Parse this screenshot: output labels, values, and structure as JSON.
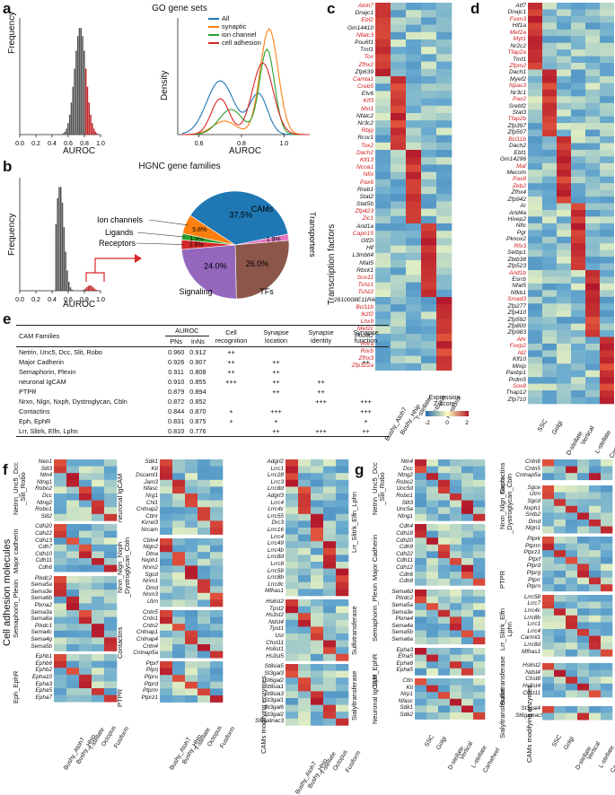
{
  "panel_labels": {
    "a": "a",
    "b": "b",
    "c": "c",
    "d": "d",
    "e": "e",
    "f": "f",
    "g": "g"
  },
  "colors": {
    "red": "#d01c1c",
    "blue_low": "#2166ac",
    "red_high": "#b2182b",
    "hist_grey": "#555555",
    "hist_red": "#c0282a"
  },
  "panel_a": {
    "title": "GO gene sets",
    "hist": {
      "xlabel": "AUROC",
      "ylabel": "Frequency",
      "xticks": [
        "0.0",
        "0.2",
        "0.4",
        "0.6",
        "0.8",
        "1.0"
      ]
    },
    "density": {
      "xlabel": "AUROC",
      "ylabel": "Density",
      "xticks": [
        "0.6",
        "0.8",
        "1.0"
      ],
      "legend": [
        {
          "label": "All",
          "color": "#1f77b4"
        },
        {
          "label": "synaptic",
          "color": "#ff7f0e"
        },
        {
          "label": "ion channel",
          "color": "#2ca02c"
        },
        {
          "label": "cell adhesion",
          "color": "#d62728"
        }
      ]
    }
  },
  "panel_b": {
    "title": "HGNC gene families",
    "hist": {
      "xlabel": "AUROC",
      "ylabel": "Frequency",
      "xticks": [
        "0.0",
        "0.2",
        "0.4",
        "0.6",
        "0.8",
        "1.0"
      ]
    },
    "pie": {
      "slices": [
        {
          "label": "CAMs",
          "value": 37.5,
          "pct": "37.5%",
          "color": "#1f77b4"
        },
        {
          "label": "Transporters",
          "value": 1.9,
          "pct": "1.9%",
          "color": "#e377c2"
        },
        {
          "label": "TFs",
          "value": 26.0,
          "pct": "26.0%",
          "color": "#8c564b"
        },
        {
          "label": "Signaling",
          "value": 24.0,
          "pct": "24.0%",
          "color": "#9467bd"
        },
        {
          "label": "Receptors",
          "value": 2.9,
          "pct": "2.9%",
          "color": "#d62728"
        },
        {
          "label": "Ligands",
          "value": 1.9,
          "pct": "1.9%",
          "color": "#2ca02c"
        },
        {
          "label": "Ion channels",
          "value": 5.8,
          "pct": "5.8%",
          "color": "#ff7f0e"
        }
      ]
    }
  },
  "panel_c": {
    "axis_title": "Transcription factors",
    "columns": [
      "Bushy_Atoh7",
      "Bushy_Hhip",
      "T-stellate",
      "Octopus",
      "Fusiform"
    ],
    "genes": [
      [
        "Atoh7",
        1
      ],
      [
        "Dnajc1",
        0
      ],
      [
        "Ebf2",
        1
      ],
      [
        "Gm14410",
        0
      ],
      [
        "Nfatc3",
        1
      ],
      [
        "Pou6f1",
        0
      ],
      [
        "Tmf1",
        0
      ],
      [
        "Tox",
        1
      ],
      [
        "Zfhx2",
        1
      ],
      [
        "Zfp639",
        0
      ],
      [
        "Camta1",
        1
      ],
      [
        "Creb5",
        1
      ],
      [
        "Etv6",
        0
      ],
      [
        "Klf3",
        1
      ],
      [
        "Mxi1",
        1
      ],
      [
        "Nfatc2",
        0
      ],
      [
        "Nr3c2",
        0
      ],
      [
        "Rbpj",
        1
      ],
      [
        "Rcor1",
        0
      ],
      [
        "Tox2",
        1
      ],
      [
        "Dach2",
        1
      ],
      [
        "Klf13",
        1
      ],
      [
        "Ncoa1",
        1
      ],
      [
        "Nfix",
        1
      ],
      [
        "Pax6",
        1
      ],
      [
        "Rreb1",
        0
      ],
      [
        "Stat2",
        0
      ],
      [
        "Stat5b",
        0
      ],
      [
        "Zfp423",
        1
      ],
      [
        "Zic1",
        1
      ],
      [
        "Arid1a",
        0
      ],
      [
        "Capn15",
        1
      ],
      [
        "Gtf2i",
        0
      ],
      [
        "Hlf",
        0
      ],
      [
        "L3mbtl4",
        0
      ],
      [
        "Nfat5",
        0
      ],
      [
        "Rbck1",
        0
      ],
      [
        "Sox11",
        1
      ],
      [
        "Tshz1",
        1
      ],
      [
        "Tshz2",
        1
      ],
      [
        "2610008E11Rik",
        0
      ],
      [
        "Bcl11b",
        1
      ],
      [
        "Ikzf2",
        1
      ],
      [
        "Lhx9",
        1
      ],
      [
        "Mef2c",
        1
      ],
      [
        "Pou6f2",
        0
      ],
      [
        "Rora",
        1
      ],
      [
        "Rorb",
        1
      ],
      [
        "Zfhx3",
        1
      ],
      [
        "Zfp322a",
        1
      ]
    ],
    "colorbar": {
      "title": "Expression\nZ-score",
      "ticks": [
        "-2",
        "0",
        "2"
      ]
    }
  },
  "panel_d": {
    "columns": [
      "SSC",
      "Golgi",
      "D-stellate",
      "Vertical",
      "L-stellate",
      "Cartwheel"
    ],
    "genes": [
      [
        "Atf7",
        0
      ],
      [
        "Dnajc1",
        0
      ],
      [
        "Foxn3",
        1
      ],
      [
        "Hif1a",
        0
      ],
      [
        "Mef2a",
        1
      ],
      [
        "Myt1",
        1
      ],
      [
        "Nr2c2",
        0
      ],
      [
        "Tfap2a",
        1
      ],
      [
        "Tmf1",
        0
      ],
      [
        "Zfpm2",
        1
      ],
      [
        "Dach1",
        0
      ],
      [
        "Myef2",
        0
      ],
      [
        "Npas3",
        1
      ],
      [
        "Nr3c1",
        0
      ],
      [
        "Pax2",
        1
      ],
      [
        "Srebf2",
        0
      ],
      [
        "Stat3",
        0
      ],
      [
        "Tfap2b",
        1
      ],
      [
        "Zfp397",
        0
      ],
      [
        "Zfp507",
        0
      ],
      [
        "Bcl11b",
        1
      ],
      [
        "Dach2",
        0
      ],
      [
        "Ebf1",
        0
      ],
      [
        "Gm14296",
        0
      ],
      [
        "Maf",
        1
      ],
      [
        "Mecom",
        0
      ],
      [
        "Pax8",
        1
      ],
      [
        "Zeb2",
        1
      ],
      [
        "Zfhx4",
        0
      ],
      [
        "Zfp942",
        0
      ],
      [
        "Ar",
        0
      ],
      [
        "Arid4a",
        0
      ],
      [
        "Hivep2",
        0
      ],
      [
        "Nfic",
        0
      ],
      [
        "Pgr",
        0
      ],
      [
        "Pknox2",
        0
      ],
      [
        "Rfx3",
        1
      ],
      [
        "Setbp1",
        0
      ],
      [
        "Zbtb38",
        0
      ],
      [
        "Zfp523",
        0
      ],
      [
        "Arid1b",
        1
      ],
      [
        "Esrrb",
        0
      ],
      [
        "Nfat5",
        0
      ],
      [
        "Nfkb1",
        0
      ],
      [
        "Smad3",
        1
      ],
      [
        "Zfp277",
        0
      ],
      [
        "Zfp410",
        0
      ],
      [
        "Zfp592",
        0
      ],
      [
        "Zfp800",
        0
      ],
      [
        "Zfp983",
        0
      ],
      [
        "Ahr",
        1
      ],
      [
        "Foxp2",
        1
      ],
      [
        "Id2",
        1
      ],
      [
        "Klf10",
        0
      ],
      [
        "Mlxip",
        0
      ],
      [
        "Paxbp1",
        0
      ],
      [
        "Prdm5",
        0
      ],
      [
        "Sox8",
        1
      ],
      [
        "Thap12",
        0
      ],
      [
        "Zfp710",
        0
      ]
    ]
  },
  "panel_e": {
    "headers": {
      "families": "CAM Families",
      "auroc": "AUROC",
      "pns": "PNs",
      "inns": "InNs",
      "cell_recognition": "Cell recognition",
      "synapse_location": "Synapse location",
      "synapse_identity": "Synapse identity",
      "synapse_function": "Synapse function"
    },
    "rows": [
      {
        "family": "Netrin, Unc5, Dcc, Slit, Robo",
        "pns": "0.960",
        "inns": "0.912",
        "rec": "++",
        "loc": "",
        "id": "",
        "fn": ""
      },
      {
        "family": "Major Cadherin",
        "pns": "0.926",
        "inns": "0.907",
        "rec": "++",
        "loc": "++",
        "id": "",
        "fn": "++"
      },
      {
        "family": "Semaphorin, Plexin",
        "pns": "0.911",
        "inns": "0.808",
        "rec": "++",
        "loc": "++",
        "id": "",
        "fn": ""
      },
      {
        "family": "neuronal IgCAM",
        "pns": "0.910",
        "inns": "0.855",
        "rec": "+++",
        "loc": "++",
        "id": "++",
        "fn": ""
      },
      {
        "family": "PTPR",
        "pns": "0.879",
        "inns": "0.894",
        "rec": "",
        "loc": "++",
        "id": "++",
        "fn": ""
      },
      {
        "family": "Nrxn, Nlgn, Nxph, Dystroglycan, Cbln",
        "pns": "0.872",
        "inns": "0.852",
        "rec": "",
        "loc": "",
        "id": "+++",
        "fn": "+++"
      },
      {
        "family": "Contactins",
        "pns": "0.844",
        "inns": "0.870",
        "rec": "+",
        "loc": "+++",
        "id": "",
        "fn": "+++"
      },
      {
        "family": "Eph, EphR",
        "pns": "0.831",
        "inns": "0.875",
        "rec": "+",
        "loc": "+",
        "id": "",
        "fn": "+"
      },
      {
        "family": "Lrr, Slitrk, Elfn, Lphn",
        "pns": "0.810",
        "inns": "0.776",
        "rec": "",
        "loc": "++",
        "id": "+++",
        "fn": "++"
      }
    ]
  },
  "panel_f": {
    "axis_title": "Cell adhesion molecules",
    "columns": [
      "Bushy_Atoh7",
      "Bushy_Hhip",
      "T-stellate",
      "Octopus",
      "Fusiform"
    ],
    "groups": {
      "netrin": {
        "title": "Netrin_Unc5_Dcc\n_Slit_Robo",
        "genes": [
          "Neo1",
          "Slit3",
          "Ntn4",
          "Ntng1",
          "Robo2",
          "Dcc",
          "Ntng2",
          "Robo1",
          "Slit2"
        ]
      },
      "cadherin": {
        "title": "Major cadherin",
        "genes": [
          "Cdh20",
          "Cdh22",
          "Cdh13",
          "Cdh7",
          "Cdh10",
          "Cdh11",
          "Cdh6"
        ]
      },
      "semaphorin": {
        "title": "Semaphorin_Plexin",
        "genes": [
          "Plxdc2",
          "Sema5a",
          "Sema3e",
          "Sema6b",
          "Plxna2",
          "Sema3a",
          "Sema6a",
          "Plxdc1",
          "Sema4c",
          "Sema4g",
          "Sema5b"
        ]
      },
      "eph": {
        "title": "Eph_EphR",
        "genes": [
          "Ephb1",
          "Ephb6",
          "Ephb2",
          "Epha10",
          "Epha3",
          "Epha5",
          "Epha7"
        ]
      },
      "igcam": {
        "title": "neuronal IgCAM",
        "genes": [
          "Sdk1",
          "Kit",
          "Dscaml1",
          "Jam3",
          "Nfasc",
          "Nrg1",
          "Chl1",
          "Cntnap2",
          "Cttnr",
          "Kirrel3",
          "Nrcam"
        ]
      },
      "nrxn": {
        "title": "Nrxn_Nlgn_Nxph\n_Dystroglycan_Cbln",
        "genes": [
          "Cbln4",
          "Nlgn2",
          "Dtna",
          "Nxph1",
          "Nrxn2",
          "Sgcd",
          "Nrxn1",
          "Dmd",
          "Nrxn3",
          "Utrn"
        ]
      },
      "contactins": {
        "title": "Contactins",
        "genes": [
          "Cntn5",
          "Cntn1",
          "Cntn2",
          "Cntnap1",
          "Cntnap4",
          "Cntn4",
          "Cntnap5a"
        ]
      },
      "ptpr": {
        "title": "PTPR",
        "genes": [
          "Ptprf",
          "Ptprj",
          "Ptpru",
          "Ptprd",
          "Ptprm",
          "Ptprz1"
        ]
      },
      "lrr": {
        "title": "Lrr_Slitrk_Elfn_Lphn",
        "genes": [
          "Adgrl2",
          "Lrrc1",
          "Lrrc28",
          "Lrrc3",
          "Lrrc8d",
          "Adgrl3",
          "Lrrc4",
          "Lrrc4c",
          "Lrrc55",
          "Drc3",
          "Lrrc16",
          "Lrrc4",
          "Lrrc49",
          "Lrrc4b",
          "Lrrc8d",
          "Lrrc8",
          "Lrrc58",
          "Lrrc8b",
          "Lrrc8c",
          "Mfhas1"
        ]
      },
      "sulfo": {
        "title": "Sulfotransferase",
        "genes": [
          "Hs6st2",
          "Tpst2",
          "Hs3st2",
          "Ndst4",
          "Tpst1",
          "Ust",
          "Chst11",
          "Hs6st1",
          "Hs3st5"
        ]
      },
      "sialyl": {
        "title": "Sialyltransferase",
        "genes": [
          "St8sia5",
          "St3gal3",
          "St6gal2",
          "St8sia1",
          "St8sia3",
          "St3gal1",
          "St3gal6",
          "St3gal2",
          "St6galnac3"
        ]
      },
      "enzymes": {
        "title": "CAMs modifying enzymes"
      }
    }
  },
  "panel_g": {
    "columns": [
      "SSC",
      "Golgi",
      "D-stellate",
      "Vertical",
      "L-stellate",
      "Cartwheel"
    ],
    "groups": {
      "netrin": {
        "title": "Netrin_Unc5_Dcc\n_Slit_Robo",
        "genes": [
          "Ntn4",
          "Dcc",
          "Ntng2",
          "Robo2",
          "Unc5d",
          "Robo1",
          "Slit3",
          "Unc5a",
          "Ntng1"
        ]
      },
      "cadherin": {
        "title": "Major Cadherin",
        "genes": [
          "Cdh4",
          "Cdh18",
          "Cdh20",
          "Cdh9",
          "Cdh22",
          "Cdh11",
          "Cdh12",
          "Cdh6",
          "Cdh8"
        ]
      },
      "semaphorin": {
        "title": "Semaphorin_Plexin",
        "genes": [
          "Sema6d",
          "Plxdc2",
          "Sema5a",
          "Sema3e",
          "Plxna4",
          "Sema4a",
          "Sema5b",
          "Sema6a"
        ]
      },
      "eph": {
        "title": "Eph_EphR",
        "genes": [
          "Epha3",
          "Efna5",
          "Epha6",
          "Epha5"
        ]
      },
      "igcam": {
        "title": "Neuronal IgCAM",
        "genes": [
          "Cttn",
          "Kit",
          "Nrp1",
          "Nfasc",
          "Sdk1",
          "Sdk2"
        ]
      },
      "contactins": {
        "title": "Contactins",
        "genes": [
          "Cntn6",
          "Cntn5",
          "Cntnap5a"
        ]
      },
      "nrxn": {
        "title": "Nrxn_Nlgn_Nxph\n_Dystroglycan_Cbln",
        "genes": [
          "Sgce",
          "Utrn",
          "Sgcd",
          "Nxph1",
          "Sntb2",
          "Dmd",
          "Nlgn1"
        ]
      },
      "ptpr": {
        "title": "PTPR",
        "genes": [
          "Ptprk",
          "Ptprm",
          "Ptprz1",
          "Ptprf",
          "Ptprd",
          "Ptprg",
          "Ptprr",
          "Ptprn"
        ]
      },
      "lrr": {
        "title": "Lrr_Slitrk_Elfn\nLphn",
        "genes": [
          "Lrrc58",
          "Lrrc7",
          "Lrrc4c",
          "Lrrc8b",
          "Lrrc1",
          "Lrrc4",
          "Carmil1",
          "Lrrc8d",
          "Mfhas1"
        ]
      },
      "sulfo": {
        "title": "Sulfotransferase",
        "genes": [
          "Hs6st2",
          "Ndst4",
          "Chst8",
          "Hs3st4",
          "Chst11"
        ]
      },
      "sialyl": {
        "title": "Sialyltransferase",
        "genes": [
          "St3gal4",
          "St6galnac5"
        ]
      },
      "enzymes": {
        "title": "CAMs modifying enzymes"
      }
    }
  }
}
